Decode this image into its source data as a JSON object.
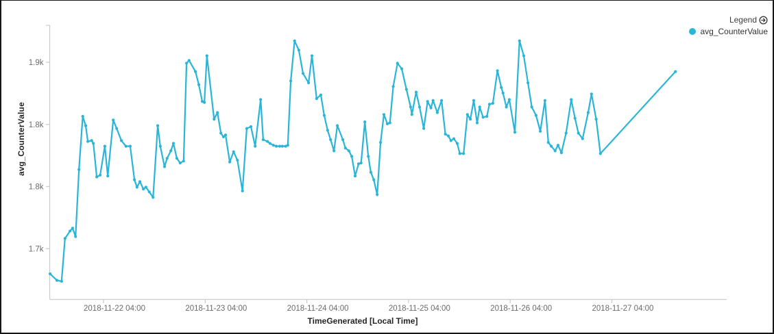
{
  "panel": {
    "background": "#ffffff",
    "border_color": "#161616"
  },
  "legend": {
    "title": "Legend",
    "expand_icon": "chevron-circle-right-icon",
    "items": [
      {
        "label": "avg_CounterValue",
        "color": "#29b5d8"
      }
    ]
  },
  "colors": {
    "line": "#29b5d8",
    "axis_line": "#cccccc",
    "tick_label": "#6a6a6a",
    "axis_title": "#252525",
    "legend_icon": "#3b3a39"
  },
  "chart_data": {
    "type": "line",
    "title": "",
    "xlabel": "TimeGenerated [Local Time]",
    "ylabel": "avg_CounterValue",
    "legend_position": "top-right",
    "grid": false,
    "marker": "circle",
    "series_name": "avg_CounterValue",
    "x_axis": {
      "tick_labels": [
        "2018-11-22 04:00",
        "2018-11-23 04:00",
        "2018-11-24 04:00",
        "2018-11-25 04:00",
        "2018-11-26 04:00",
        "2018-11-27 04:00"
      ],
      "tick_hours": [
        0,
        24,
        48,
        72,
        96,
        120
      ],
      "x_unit": "hours since 2018-11-22 04:00 (Local Time)",
      "range_hours": [
        -12.8,
        147.2
      ]
    },
    "y_axis": {
      "tick_labels": [
        "1.9k",
        "1.8k",
        "1.8k",
        "1.7k"
      ],
      "tick_values": [
        1900,
        1833.3,
        1766.7,
        1700
      ],
      "ylim": [
        1645,
        1938
      ]
    },
    "points": [
      [
        -12.6,
        1673
      ],
      [
        -11.0,
        1666
      ],
      [
        -9.9,
        1665
      ],
      [
        -9.1,
        1711
      ],
      [
        -7.9,
        1719
      ],
      [
        -7.3,
        1722
      ],
      [
        -6.6,
        1713
      ],
      [
        -5.8,
        1785
      ],
      [
        -4.9,
        1842
      ],
      [
        -4.2,
        1832
      ],
      [
        -3.7,
        1815
      ],
      [
        -2.8,
        1816
      ],
      [
        -2.4,
        1813
      ],
      [
        -1.6,
        1777
      ],
      [
        -0.8,
        1779
      ],
      [
        0.3,
        1810
      ],
      [
        1.0,
        1778
      ],
      [
        2.3,
        1838
      ],
      [
        3.1,
        1829
      ],
      [
        4.2,
        1816
      ],
      [
        5.3,
        1810
      ],
      [
        6.3,
        1810
      ],
      [
        7.3,
        1774
      ],
      [
        7.9,
        1766
      ],
      [
        8.6,
        1772
      ],
      [
        9.4,
        1764
      ],
      [
        10.0,
        1766
      ],
      [
        10.8,
        1761
      ],
      [
        11.7,
        1755
      ],
      [
        12.8,
        1832
      ],
      [
        13.4,
        1810
      ],
      [
        14.4,
        1788
      ],
      [
        15.0,
        1797
      ],
      [
        15.9,
        1805
      ],
      [
        16.5,
        1813
      ],
      [
        17.3,
        1797
      ],
      [
        18.1,
        1792
      ],
      [
        18.9,
        1794
      ],
      [
        19.6,
        1899
      ],
      [
        20.2,
        1902
      ],
      [
        21.7,
        1890
      ],
      [
        22.5,
        1876
      ],
      [
        23.3,
        1858
      ],
      [
        23.8,
        1857
      ],
      [
        24.4,
        1907
      ],
      [
        26.1,
        1839
      ],
      [
        26.9,
        1846
      ],
      [
        27.7,
        1824
      ],
      [
        28.3,
        1820
      ],
      [
        28.8,
        1822
      ],
      [
        29.8,
        1793
      ],
      [
        30.7,
        1804
      ],
      [
        31.6,
        1795
      ],
      [
        32.8,
        1762
      ],
      [
        33.8,
        1829
      ],
      [
        34.8,
        1831
      ],
      [
        35.8,
        1810
      ],
      [
        37.1,
        1860
      ],
      [
        37.7,
        1817
      ],
      [
        38.7,
        1815
      ],
      [
        39.3,
        1813
      ],
      [
        40.1,
        1811
      ],
      [
        40.8,
        1810
      ],
      [
        41.6,
        1810
      ],
      [
        42.2,
        1810
      ],
      [
        43.0,
        1810
      ],
      [
        43.5,
        1811
      ],
      [
        44.2,
        1880
      ],
      [
        45.1,
        1923
      ],
      [
        46.1,
        1913
      ],
      [
        47.1,
        1888
      ],
      [
        48.4,
        1878
      ],
      [
        49.2,
        1907
      ],
      [
        50.3,
        1861
      ],
      [
        51.3,
        1865
      ],
      [
        52.1,
        1843
      ],
      [
        52.9,
        1827
      ],
      [
        53.6,
        1817
      ],
      [
        54.4,
        1805
      ],
      [
        55.2,
        1832
      ],
      [
        56.5,
        1817
      ],
      [
        57.1,
        1808
      ],
      [
        57.9,
        1805
      ],
      [
        58.6,
        1799
      ],
      [
        59.4,
        1778
      ],
      [
        60.2,
        1791
      ],
      [
        60.8,
        1792
      ],
      [
        61.7,
        1836
      ],
      [
        62.5,
        1799
      ],
      [
        63.1,
        1782
      ],
      [
        63.8,
        1774
      ],
      [
        64.6,
        1758
      ],
      [
        65.4,
        1814
      ],
      [
        66.2,
        1844
      ],
      [
        67.0,
        1834
      ],
      [
        67.6,
        1835
      ],
      [
        68.4,
        1874
      ],
      [
        69.4,
        1899
      ],
      [
        70.4,
        1893
      ],
      [
        71.5,
        1871
      ],
      [
        72.5,
        1852
      ],
      [
        72.8,
        1844
      ],
      [
        73.8,
        1868
      ],
      [
        74.6,
        1852
      ],
      [
        75.6,
        1829
      ],
      [
        76.5,
        1858
      ],
      [
        77.3,
        1851
      ],
      [
        77.8,
        1859
      ],
      [
        78.8,
        1846
      ],
      [
        79.8,
        1859
      ],
      [
        80.7,
        1823
      ],
      [
        81.4,
        1821
      ],
      [
        82.0,
        1816
      ],
      [
        82.7,
        1818
      ],
      [
        83.5,
        1813
      ],
      [
        84.1,
        1802
      ],
      [
        85.0,
        1802
      ],
      [
        85.9,
        1844
      ],
      [
        86.6,
        1839
      ],
      [
        87.4,
        1859
      ],
      [
        88.2,
        1835
      ],
      [
        88.8,
        1852
      ],
      [
        89.6,
        1841
      ],
      [
        90.5,
        1842
      ],
      [
        91.1,
        1855
      ],
      [
        91.9,
        1856
      ],
      [
        93.0,
        1891
      ],
      [
        93.9,
        1873
      ],
      [
        94.3,
        1867
      ],
      [
        95.1,
        1852
      ],
      [
        95.8,
        1860
      ],
      [
        97.1,
        1825
      ],
      [
        98.2,
        1923
      ],
      [
        99.2,
        1907
      ],
      [
        100.2,
        1878
      ],
      [
        101.1,
        1852
      ],
      [
        102.1,
        1843
      ],
      [
        103.1,
        1826
      ],
      [
        104.2,
        1859
      ],
      [
        105.0,
        1814
      ],
      [
        105.7,
        1810
      ],
      [
        106.6,
        1805
      ],
      [
        107.3,
        1811
      ],
      [
        108.1,
        1803
      ],
      [
        109.2,
        1824
      ],
      [
        110.4,
        1860
      ],
      [
        111.3,
        1840
      ],
      [
        112.1,
        1824
      ],
      [
        113.1,
        1818
      ],
      [
        114.4,
        1846
      ],
      [
        115.2,
        1866
      ],
      [
        116.3,
        1839
      ],
      [
        117.3,
        1802
      ],
      [
        135.0,
        1890
      ]
    ]
  }
}
